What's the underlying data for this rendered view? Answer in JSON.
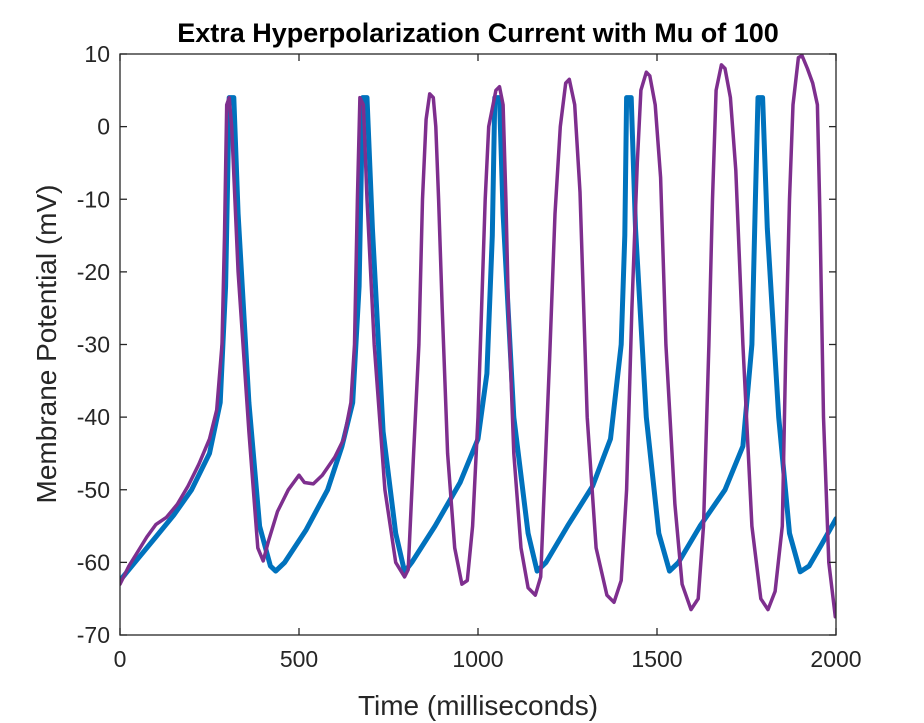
{
  "chart_data": {
    "type": "line",
    "title": "Extra Hyperpolarization Current with Mu of 100",
    "xlabel": "Time (milliseconds)",
    "ylabel": "Membrane Potential (mV)",
    "xlim": [
      0,
      2000
    ],
    "ylim": [
      -70,
      10
    ],
    "xticks": [
      0,
      500,
      1000,
      1500,
      2000
    ],
    "xtick_labels": [
      "0",
      "500",
      "1000",
      "1500",
      "2000"
    ],
    "yticks": [
      10,
      0,
      -10,
      -20,
      -30,
      -40,
      -50,
      -60,
      -70
    ],
    "ytick_labels": [
      "10",
      "0",
      "-10",
      "-20",
      "-30",
      "-40",
      "-50",
      "-60",
      "-70"
    ],
    "grid": false,
    "series": [
      {
        "color": "#0072BD",
        "linewidth": 5,
        "points": [
          [
            0,
            -62.5
          ],
          [
            50,
            -59.5
          ],
          [
            100,
            -56.5
          ],
          [
            150,
            -53.5
          ],
          [
            200,
            -50
          ],
          [
            250,
            -45
          ],
          [
            280,
            -38
          ],
          [
            295,
            -22
          ],
          [
            305,
            4
          ],
          [
            318,
            4
          ],
          [
            330,
            -12
          ],
          [
            360,
            -38
          ],
          [
            390,
            -55
          ],
          [
            420,
            -60.5
          ],
          [
            435,
            -61.2
          ],
          [
            460,
            -60
          ],
          [
            520,
            -55.5
          ],
          [
            580,
            -50
          ],
          [
            620,
            -44
          ],
          [
            650,
            -38
          ],
          [
            668,
            -22
          ],
          [
            678,
            4
          ],
          [
            690,
            4
          ],
          [
            705,
            -14
          ],
          [
            735,
            -42
          ],
          [
            770,
            -56
          ],
          [
            795,
            -61.3
          ],
          [
            815,
            -60
          ],
          [
            880,
            -55
          ],
          [
            950,
            -49
          ],
          [
            1000,
            -43
          ],
          [
            1025,
            -34
          ],
          [
            1040,
            -15
          ],
          [
            1047,
            4
          ],
          [
            1060,
            4
          ],
          [
            1070,
            -12
          ],
          [
            1100,
            -40
          ],
          [
            1140,
            -56
          ],
          [
            1165,
            -61.2
          ],
          [
            1190,
            -60
          ],
          [
            1250,
            -55
          ],
          [
            1320,
            -49.5
          ],
          [
            1370,
            -43
          ],
          [
            1400,
            -30
          ],
          [
            1410,
            -15
          ],
          [
            1415,
            4
          ],
          [
            1428,
            4
          ],
          [
            1440,
            -14
          ],
          [
            1470,
            -40
          ],
          [
            1505,
            -56
          ],
          [
            1535,
            -61.2
          ],
          [
            1560,
            -60
          ],
          [
            1620,
            -55
          ],
          [
            1690,
            -50
          ],
          [
            1740,
            -44
          ],
          [
            1765,
            -30
          ],
          [
            1775,
            -10
          ],
          [
            1782,
            4
          ],
          [
            1795,
            4
          ],
          [
            1808,
            -14
          ],
          [
            1840,
            -40
          ],
          [
            1870,
            -56
          ],
          [
            1900,
            -61.3
          ],
          [
            1925,
            -60.5
          ],
          [
            1960,
            -57.5
          ],
          [
            2000,
            -54
          ]
        ]
      },
      {
        "color": "#7E2F8E",
        "linewidth": 3.5,
        "points": [
          [
            0,
            -63
          ],
          [
            25,
            -60.5
          ],
          [
            50,
            -58.5
          ],
          [
            75,
            -56.5
          ],
          [
            100,
            -54.8
          ],
          [
            130,
            -53.8
          ],
          [
            160,
            -52
          ],
          [
            190,
            -49.5
          ],
          [
            220,
            -46.5
          ],
          [
            250,
            -43
          ],
          [
            270,
            -39
          ],
          [
            285,
            -30
          ],
          [
            292,
            -15
          ],
          [
            298,
            3
          ],
          [
            305,
            4
          ],
          [
            312,
            0
          ],
          [
            330,
            -20
          ],
          [
            360,
            -42
          ],
          [
            385,
            -58
          ],
          [
            400,
            -59.8
          ],
          [
            415,
            -57
          ],
          [
            440,
            -53
          ],
          [
            470,
            -50
          ],
          [
            500,
            -48
          ],
          [
            515,
            -49
          ],
          [
            540,
            -49.2
          ],
          [
            565,
            -48
          ],
          [
            600,
            -45.5
          ],
          [
            625,
            -43
          ],
          [
            645,
            -38
          ],
          [
            655,
            -30
          ],
          [
            663,
            -10
          ],
          [
            670,
            4
          ],
          [
            680,
            3
          ],
          [
            690,
            -10
          ],
          [
            710,
            -30
          ],
          [
            740,
            -50
          ],
          [
            770,
            -60
          ],
          [
            795,
            -62
          ],
          [
            805,
            -61
          ],
          [
            820,
            -45
          ],
          [
            835,
            -30
          ],
          [
            845,
            -10
          ],
          [
            855,
            1
          ],
          [
            865,
            4.5
          ],
          [
            875,
            4
          ],
          [
            882,
            0
          ],
          [
            890,
            -10
          ],
          [
            900,
            -25
          ],
          [
            915,
            -45
          ],
          [
            935,
            -58
          ],
          [
            955,
            -63
          ],
          [
            970,
            -62.5
          ],
          [
            985,
            -55
          ],
          [
            1000,
            -40
          ],
          [
            1010,
            -25
          ],
          [
            1020,
            -10
          ],
          [
            1030,
            0
          ],
          [
            1050,
            5
          ],
          [
            1060,
            5.5
          ],
          [
            1070,
            3
          ],
          [
            1078,
            -10
          ],
          [
            1085,
            -25
          ],
          [
            1100,
            -45
          ],
          [
            1120,
            -58
          ],
          [
            1140,
            -63.5
          ],
          [
            1160,
            -64.5
          ],
          [
            1175,
            -62
          ],
          [
            1185,
            -50
          ],
          [
            1200,
            -32
          ],
          [
            1215,
            -12
          ],
          [
            1230,
            0
          ],
          [
            1245,
            6
          ],
          [
            1255,
            6.5
          ],
          [
            1270,
            3
          ],
          [
            1285,
            -9
          ],
          [
            1305,
            -40
          ],
          [
            1330,
            -58
          ],
          [
            1360,
            -64.5
          ],
          [
            1380,
            -65.5
          ],
          [
            1400,
            -62.5
          ],
          [
            1415,
            -50
          ],
          [
            1430,
            -25
          ],
          [
            1445,
            -5
          ],
          [
            1455,
            5
          ],
          [
            1470,
            7.5
          ],
          [
            1480,
            7
          ],
          [
            1495,
            3
          ],
          [
            1510,
            -7
          ],
          [
            1525,
            -30
          ],
          [
            1550,
            -52
          ],
          [
            1570,
            -63
          ],
          [
            1595,
            -66.5
          ],
          [
            1615,
            -65
          ],
          [
            1630,
            -55
          ],
          [
            1645,
            -30
          ],
          [
            1655,
            -10
          ],
          [
            1665,
            5
          ],
          [
            1680,
            8.5
          ],
          [
            1690,
            8
          ],
          [
            1705,
            4
          ],
          [
            1720,
            -6
          ],
          [
            1740,
            -30
          ],
          [
            1765,
            -55
          ],
          [
            1790,
            -65
          ],
          [
            1810,
            -66.5
          ],
          [
            1830,
            -64
          ],
          [
            1850,
            -55
          ],
          [
            1860,
            -30
          ],
          [
            1870,
            -10
          ],
          [
            1880,
            3
          ],
          [
            1895,
            9.5
          ],
          [
            1905,
            9.8
          ],
          [
            1920,
            8
          ],
          [
            1935,
            6
          ],
          [
            1948,
            3
          ],
          [
            1955,
            -12
          ],
          [
            1965,
            -40
          ],
          [
            1980,
            -60
          ],
          [
            1998,
            -67.5
          ],
          [
            2020,
            -67
          ],
          [
            2040,
            -65.5
          ]
        ]
      }
    ]
  }
}
